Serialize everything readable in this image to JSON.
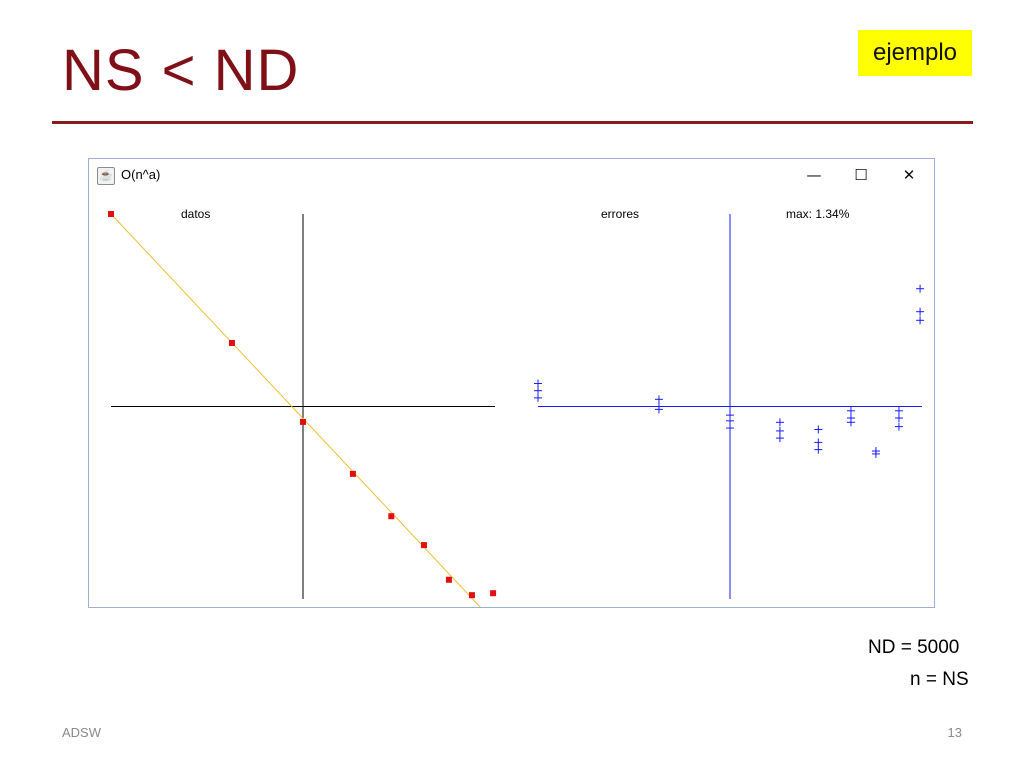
{
  "slide": {
    "title": "NS < ND",
    "tag": "ejemplo",
    "footer_left": "ADSW",
    "page_number": "13",
    "notes": [
      "ND = 5000",
      "n = NS"
    ]
  },
  "window": {
    "title": "O(n^a)",
    "icon": "java-cup-icon",
    "controls": {
      "minimize": "—",
      "maximize": "☐",
      "close": "✕"
    }
  },
  "colors": {
    "title": "#7f1018",
    "rule": "#8b1a1a",
    "badge": "#ffff00",
    "fit_line": "#f0c030",
    "data_points": "#e01010",
    "errors": "#1a1aff",
    "axes_left": "#000000"
  },
  "chart_data": [
    {
      "type": "scatter",
      "title": "datos",
      "xlabel": "",
      "ylabel": "",
      "grid": false,
      "xlim": [
        -5,
        5
      ],
      "ylim": [
        -5,
        5
      ],
      "axes_origin": [
        0,
        0
      ],
      "fit_line": {
        "from": [
          -5,
          5
        ],
        "to": [
          4.7,
          -5.3
        ]
      },
      "points": [
        {
          "x": -5.0,
          "y": 5.0
        },
        {
          "x": -1.85,
          "y": 1.65
        },
        {
          "x": 0.0,
          "y": -0.4
        },
        {
          "x": 1.3,
          "y": -1.75
        },
        {
          "x": 2.3,
          "y": -2.85
        },
        {
          "x": 3.15,
          "y": -3.6
        },
        {
          "x": 3.8,
          "y": -4.5
        },
        {
          "x": 4.4,
          "y": -4.9
        },
        {
          "x": 4.95,
          "y": -4.85
        }
      ]
    },
    {
      "type": "scatter",
      "title": "errores",
      "annotation": "max: 1.34%",
      "xlabel": "",
      "ylabel": "",
      "grid": false,
      "xlim": [
        -5,
        5
      ],
      "ylim": [
        -1.34,
        1.34
      ],
      "axes_origin": [
        0,
        0
      ],
      "marker": "+",
      "points": [
        {
          "x": -5.0,
          "y": 0.16
        },
        {
          "x": -5.0,
          "y": 0.11
        },
        {
          "x": -5.0,
          "y": 0.06
        },
        {
          "x": -1.85,
          "y": 0.05
        },
        {
          "x": -1.85,
          "y": 0.0
        },
        {
          "x": -1.85,
          "y": -0.02
        },
        {
          "x": 0.0,
          "y": -0.06
        },
        {
          "x": 0.0,
          "y": -0.1
        },
        {
          "x": 0.0,
          "y": -0.15
        },
        {
          "x": 1.3,
          "y": -0.11
        },
        {
          "x": 1.3,
          "y": -0.17
        },
        {
          "x": 1.3,
          "y": -0.22
        },
        {
          "x": 2.3,
          "y": -0.16
        },
        {
          "x": 2.3,
          "y": -0.25
        },
        {
          "x": 2.3,
          "y": -0.3
        },
        {
          "x": 3.15,
          "y": -0.03
        },
        {
          "x": 3.15,
          "y": -0.08
        },
        {
          "x": 3.15,
          "y": -0.11
        },
        {
          "x": 3.8,
          "y": -0.31
        },
        {
          "x": 3.8,
          "y": -0.33
        },
        {
          "x": 4.4,
          "y": -0.03
        },
        {
          "x": 4.4,
          "y": -0.08
        },
        {
          "x": 4.4,
          "y": -0.14
        },
        {
          "x": 4.95,
          "y": 0.82
        },
        {
          "x": 4.95,
          "y": 0.66
        },
        {
          "x": 4.95,
          "y": 0.6
        }
      ]
    }
  ]
}
